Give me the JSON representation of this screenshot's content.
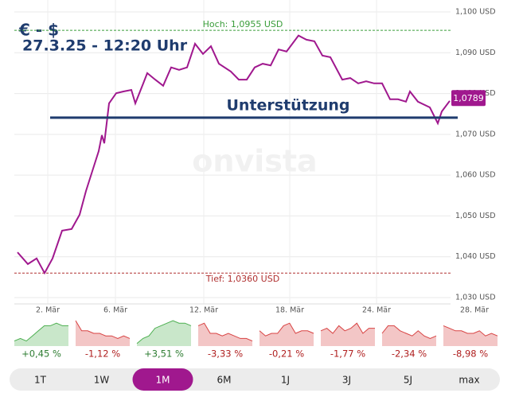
{
  "chart_data": {
    "type": "line",
    "title": "€ - $",
    "subtitle": "27.3.25 - 12:20 Uhr",
    "watermark": "onvista",
    "xlim": [
      0,
      27.4
    ],
    "ylim": [
      1.03,
      1.1
    ],
    "xticks": [
      {
        "value": 2.1,
        "label": "2. Mär"
      },
      {
        "value": 6.35,
        "label": "6. Mär"
      },
      {
        "value": 11.9,
        "label": "12. Mär"
      },
      {
        "value": 17.3,
        "label": "18. Mär"
      },
      {
        "value": 22.75,
        "label": "24. Mär"
      },
      {
        "value": 28.9,
        "label": "28. Mär"
      }
    ],
    "yticks": [
      {
        "value": 1.03,
        "label": "1,030 USD"
      },
      {
        "value": 1.04,
        "label": "1,040 USD"
      },
      {
        "value": 1.05,
        "label": "1,050 USD"
      },
      {
        "value": 1.06,
        "label": "1,060 USD"
      },
      {
        "value": 1.07,
        "label": "1,070 USD"
      },
      {
        "value": 1.08,
        "label": "1,080 USD"
      },
      {
        "value": 1.09,
        "label": "1,090 USD"
      },
      {
        "value": 1.1,
        "label": "1,100 USD"
      }
    ],
    "grid": true,
    "series": [
      {
        "name": "EUR/USD",
        "color": "#a0188e",
        "x": [
          0.2,
          0.85,
          1.4,
          1.9,
          2.4,
          3.0,
          3.6,
          4.1,
          4.5,
          4.9,
          5.3,
          5.5,
          5.65,
          5.95,
          6.4,
          6.85,
          7.35,
          7.6,
          8.1,
          8.35,
          8.85,
          9.35,
          9.85,
          10.35,
          10.85,
          11.35,
          11.85,
          12.35,
          12.85,
          13.6,
          14.1,
          14.6,
          15.1,
          15.6,
          16.1,
          16.6,
          17.1,
          17.85,
          18.35,
          18.85,
          19.35,
          19.85,
          20.6,
          21.1,
          21.6,
          22.1,
          22.6,
          23.1,
          23.6,
          24.1,
          24.6,
          24.85,
          25.35,
          26.1,
          26.6,
          26.85,
          27.35
        ],
        "values": [
          1.0411,
          1.0382,
          1.0396,
          1.036,
          1.0396,
          1.0464,
          1.0468,
          1.0503,
          1.0561,
          1.061,
          1.0659,
          1.0698,
          1.0678,
          1.0776,
          1.0801,
          1.0805,
          1.0809,
          1.0776,
          1.0825,
          1.085,
          1.0834,
          1.0819,
          1.0864,
          1.0858,
          1.0864,
          1.0922,
          1.0897,
          1.0916,
          1.0873,
          1.0854,
          1.0834,
          1.0834,
          1.0864,
          1.0873,
          1.0869,
          1.0908,
          1.0903,
          1.0942,
          1.0932,
          1.0928,
          1.0893,
          1.0889,
          1.0834,
          1.0838,
          1.0825,
          1.083,
          1.0825,
          1.0825,
          1.0786,
          1.0786,
          1.078,
          1.0805,
          1.078,
          1.0766,
          1.0727,
          1.0756,
          1.0782
        ]
      }
    ],
    "last_value": 1.0789,
    "last_label": "1,0789",
    "high": {
      "value": 1.0955,
      "label": "Hoch: 1,0955 USD",
      "color": "#3a9d3a"
    },
    "low": {
      "value": 1.036,
      "label": "Tief: 1,0360 USD",
      "color": "#b03030"
    },
    "support": {
      "value": 1.0741,
      "label": "Unterstützung",
      "color": "#1f3c6e"
    },
    "up_color": "#4caf50",
    "down_color": "#d84343",
    "periods": [
      {
        "name": "1T",
        "change": 0.45,
        "change_label": "+0,45 %",
        "spark": [
          2,
          3,
          2,
          4,
          6,
          8,
          8,
          9,
          8,
          8
        ]
      },
      {
        "name": "1W",
        "change": -1.12,
        "change_label": "-1,12 %",
        "spark": [
          10,
          6,
          6,
          5,
          5,
          4,
          4,
          3,
          4,
          3
        ]
      },
      {
        "name": "1M",
        "change": 3.51,
        "change_label": "+3,51 %",
        "spark": [
          1,
          3,
          4,
          7,
          8,
          9,
          10,
          9,
          9,
          8
        ]
      },
      {
        "name": "6M",
        "change": -3.33,
        "change_label": "-3,33 %",
        "spark": [
          8,
          9,
          5,
          5,
          4,
          5,
          4,
          3,
          3,
          2
        ]
      },
      {
        "name": "1J",
        "change": -0.21,
        "change_label": "-0,21 %",
        "spark": [
          6,
          4,
          5,
          5,
          8,
          9,
          5,
          6,
          6,
          5
        ]
      },
      {
        "name": "3J",
        "change": -1.77,
        "change_label": "-1,77 %",
        "spark": [
          6,
          7,
          5,
          8,
          6,
          7,
          9,
          5,
          7,
          7
        ]
      },
      {
        "name": "5J",
        "change": -2.34,
        "change_label": "-2,34 %",
        "spark": [
          5,
          8,
          8,
          6,
          5,
          4,
          6,
          4,
          3,
          4
        ]
      },
      {
        "name": "max",
        "change": -8.98,
        "change_label": "-8,98 %",
        "spark": [
          8,
          7,
          6,
          6,
          5,
          5,
          6,
          4,
          5,
          4
        ]
      }
    ],
    "selected": 2,
    "selected_color": "#a0188e"
  }
}
